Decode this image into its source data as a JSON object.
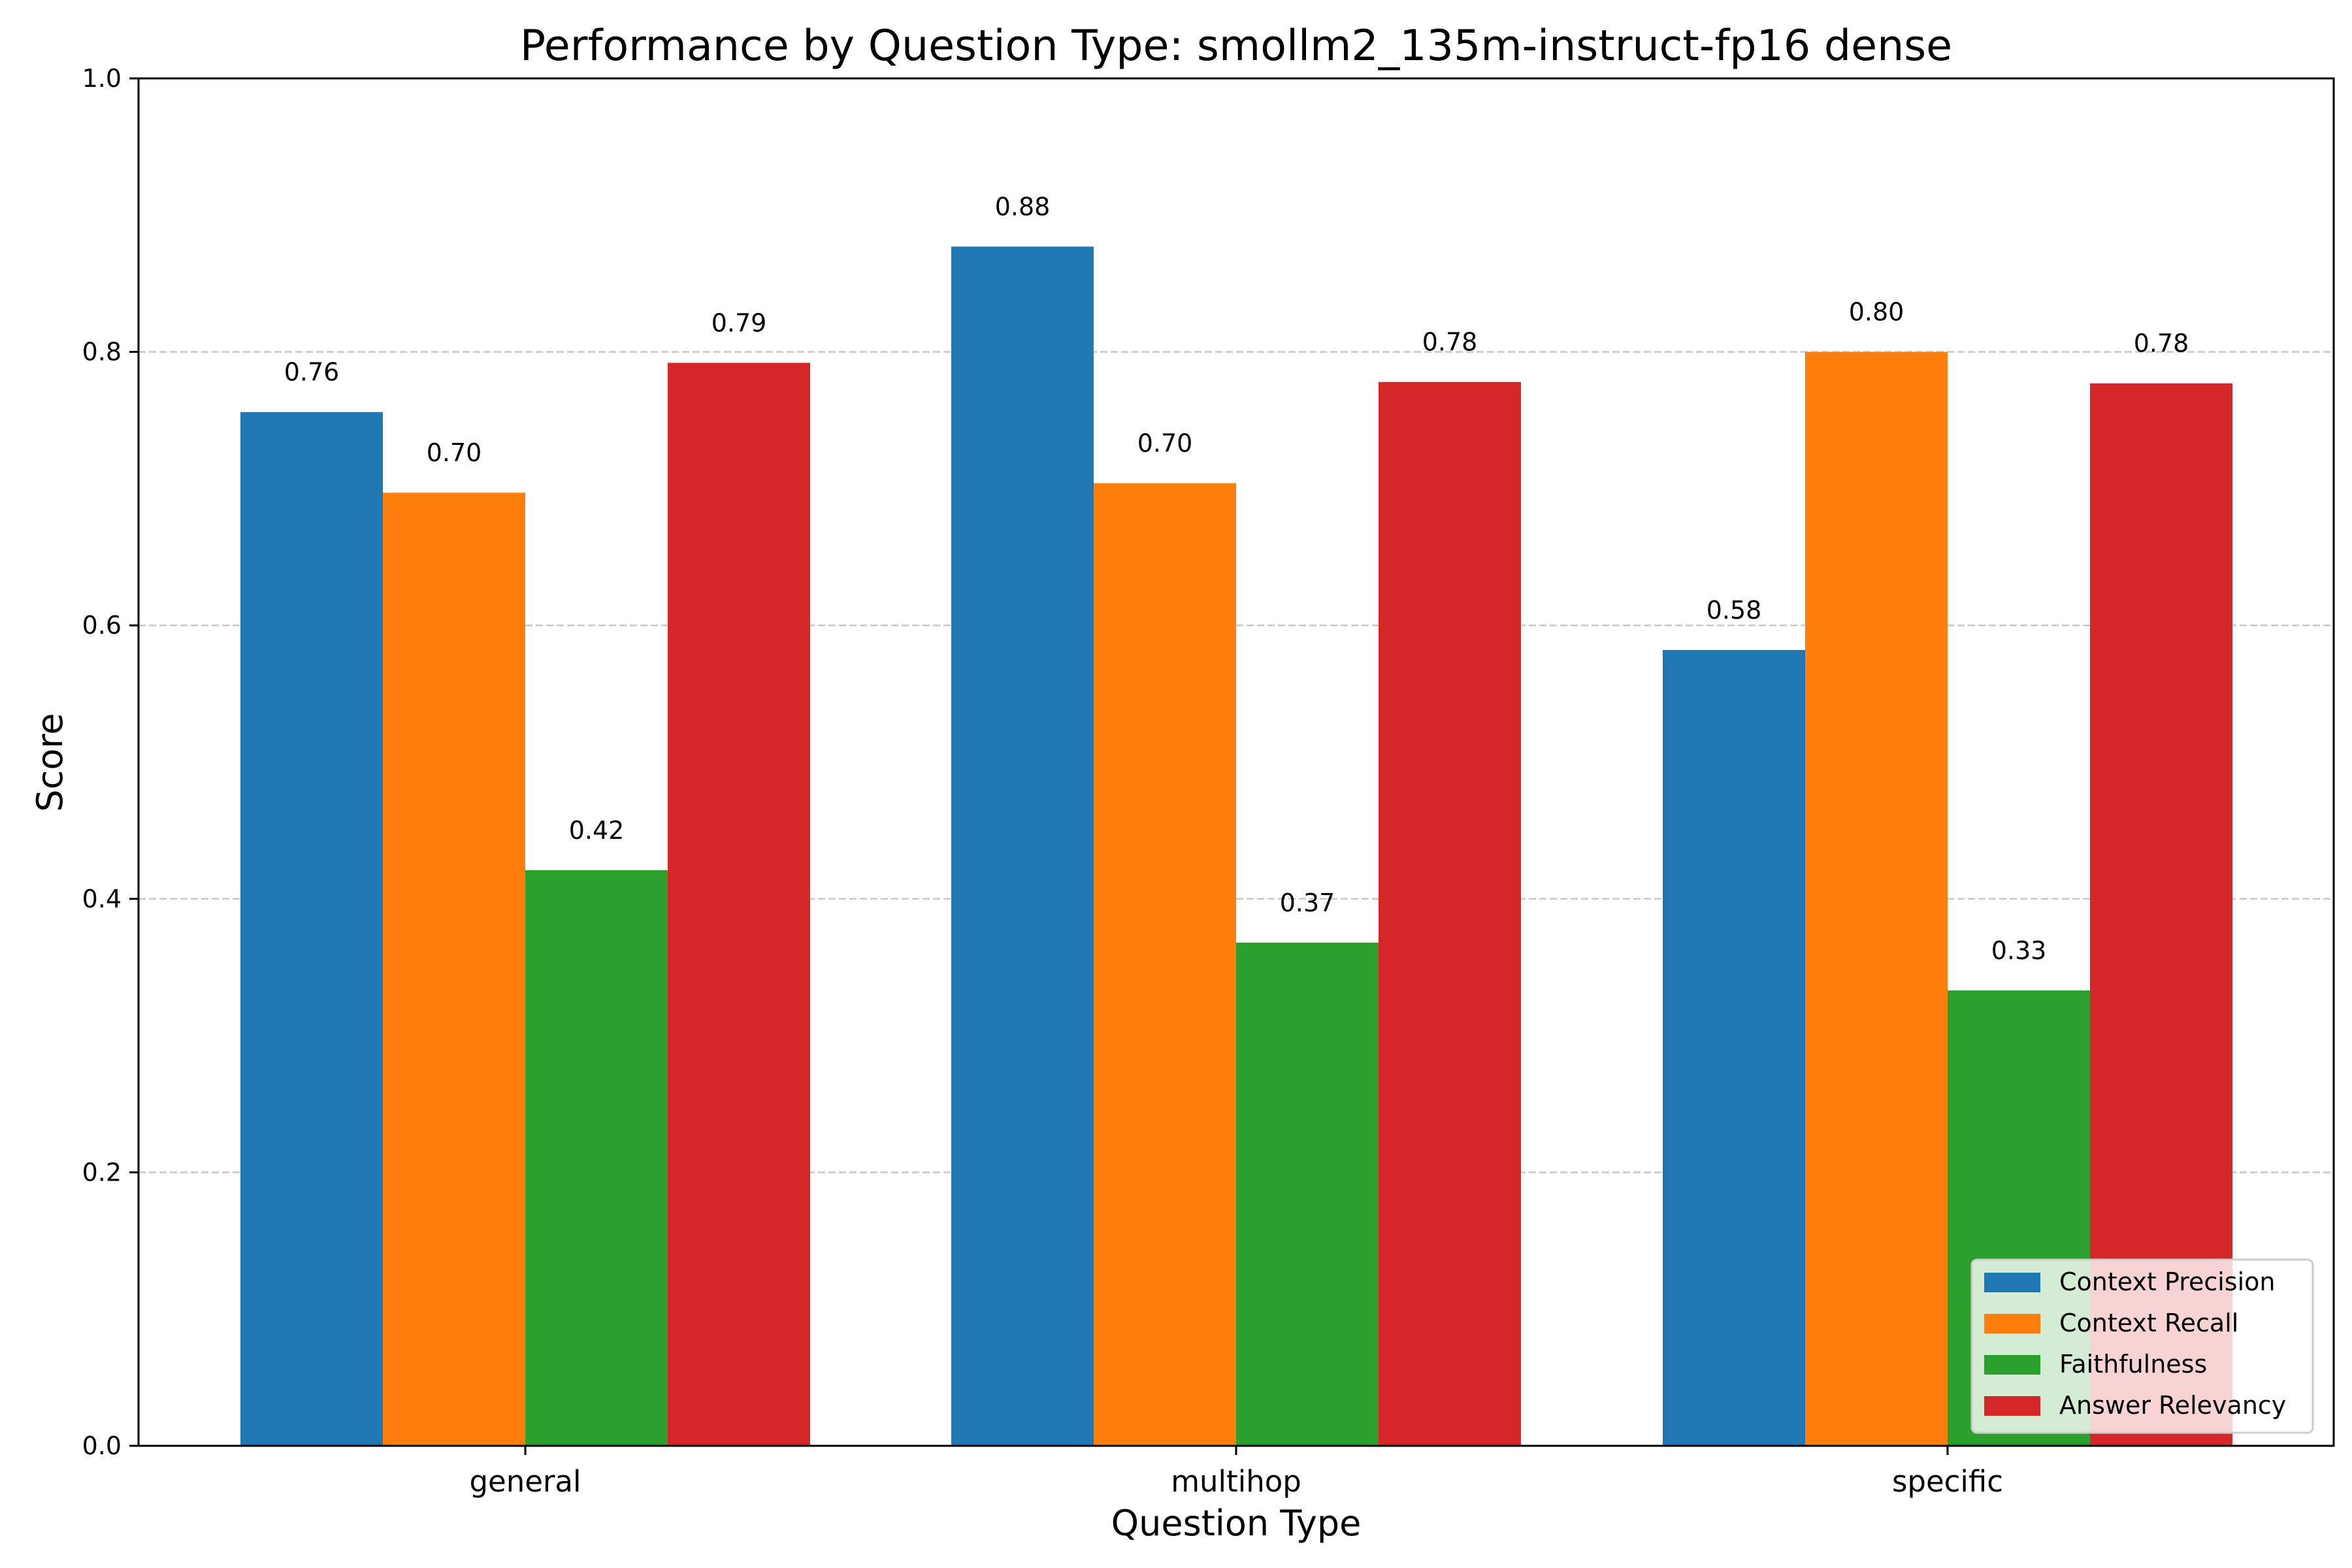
{
  "chart_data": {
    "type": "bar",
    "title": "Performance by Question Type: smollm2_135m-instruct-fp16 dense",
    "xlabel": "Question Type",
    "ylabel": "Score",
    "categories": [
      "general",
      "multihop",
      "specific"
    ],
    "ylim": [
      0,
      1.0
    ],
    "yticks": [
      "0.0",
      "0.2",
      "0.4",
      "0.6",
      "0.8",
      "1.0"
    ],
    "ytick_values": [
      0,
      0.2,
      0.4,
      0.6,
      0.8,
      1.0
    ],
    "grid": "horizontal dashed",
    "legend_position": "bottom-right",
    "series": [
      {
        "name": "Context Precision",
        "color": "#1f77b4",
        "values": [
          0.756,
          0.877,
          0.582
        ],
        "labels": [
          "0.76",
          "0.88",
          "0.58"
        ]
      },
      {
        "name": "Context Recall",
        "color": "#ff7f0e",
        "values": [
          0.697,
          0.704,
          0.8
        ],
        "labels": [
          "0.70",
          "0.70",
          "0.80"
        ]
      },
      {
        "name": "Faithfulness",
        "color": "#2ca02c",
        "values": [
          0.421,
          0.368,
          0.333
        ],
        "labels": [
          "0.42",
          "0.37",
          "0.33"
        ]
      },
      {
        "name": "Answer Relevancy",
        "color": "#d62728",
        "values": [
          0.792,
          0.778,
          0.777
        ],
        "labels": [
          "0.79",
          "0.78",
          "0.78"
        ]
      }
    ]
  }
}
